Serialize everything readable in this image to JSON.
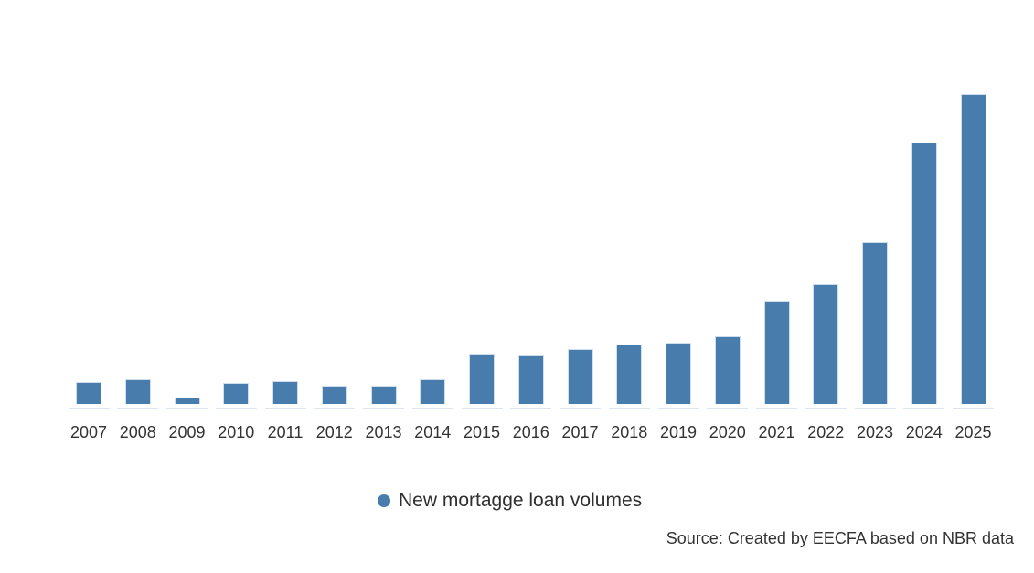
{
  "chart_data": {
    "type": "bar",
    "title": "",
    "xlabel": "",
    "ylabel": "",
    "grid": false,
    "value_axis_visible": false,
    "legend_position": "bottom-center",
    "ylim": [
      0,
      350
    ],
    "categories": [
      "2007",
      "2008",
      "2009",
      "2010",
      "2011",
      "2012",
      "2013",
      "2014",
      "2015",
      "2016",
      "2017",
      "2018",
      "2019",
      "2020",
      "2021",
      "2022",
      "2023",
      "2024",
      "2025"
    ],
    "series": [
      {
        "name": "New mortagge loan volumes",
        "color": "#487cac",
        "values": [
          24,
          27,
          7,
          23,
          25,
          20,
          20,
          27,
          55,
          53,
          60,
          65,
          67,
          74,
          113,
          131,
          177,
          286,
          339
        ]
      }
    ]
  },
  "legend": {
    "marker_icon": "circle-icon"
  },
  "source_note": "Source: Created by EECFA based on NBR data",
  "colors": {
    "bar": "#487cac",
    "bar_border": "#cfdeec",
    "axis_tick": "#dce5f0",
    "text": "#333333",
    "background": "#ffffff"
  }
}
